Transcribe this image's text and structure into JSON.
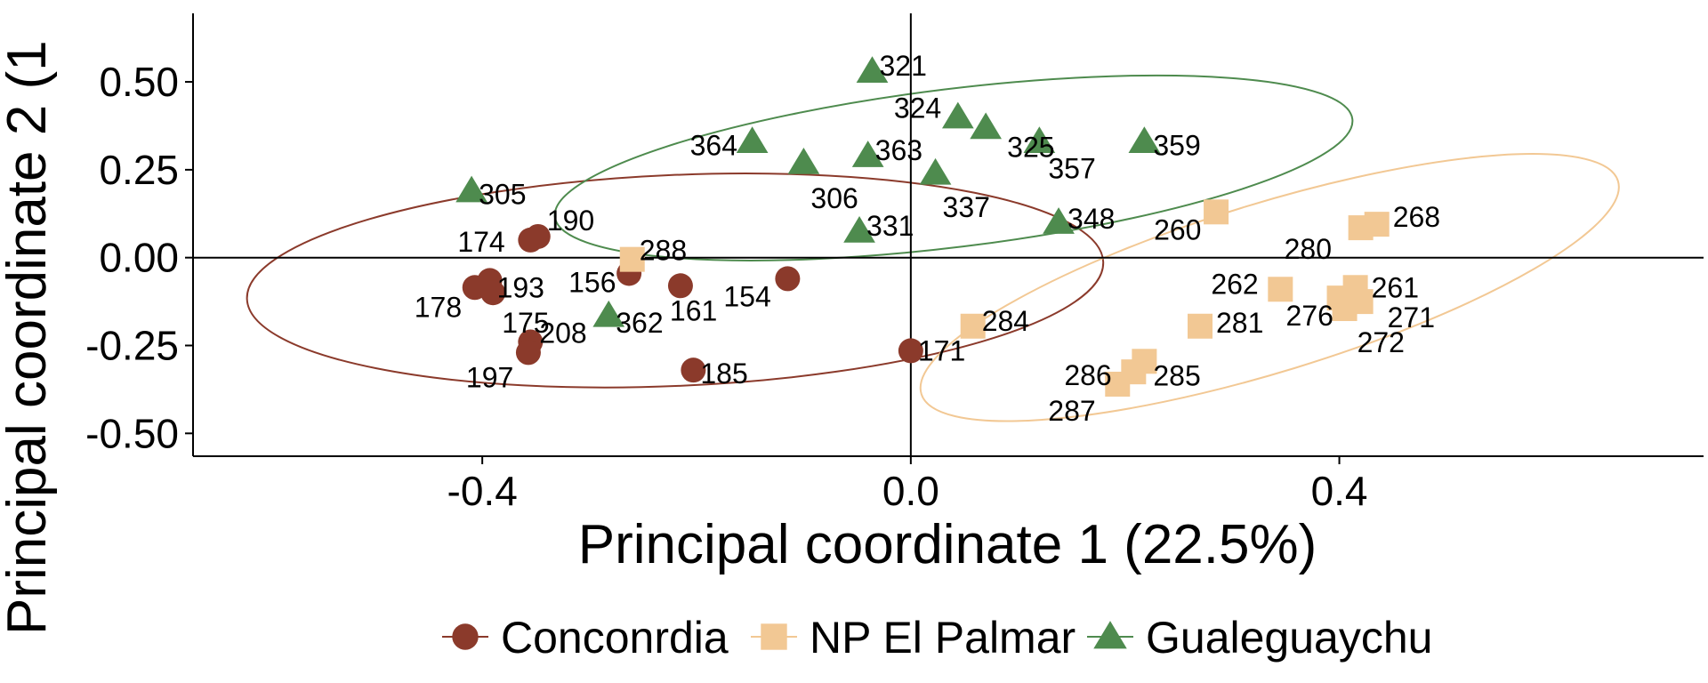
{
  "chart_data": {
    "type": "scatter",
    "xlabel": "Principal coordinate 1 (22.5%)",
    "ylabel": "Principal coordinate 2 (1",
    "xlim": [
      -0.67,
      0.74
    ],
    "ylim": [
      -0.565,
      0.695
    ],
    "xticks": [
      {
        "v": -0.4,
        "label": "-0.4"
      },
      {
        "v": 0.0,
        "label": "0.0"
      },
      {
        "v": 0.4,
        "label": "0.4"
      }
    ],
    "yticks": [
      {
        "v": 0.5,
        "label": "0.50"
      },
      {
        "v": 0.25,
        "label": "0.25"
      },
      {
        "v": 0.0,
        "label": "0.00"
      },
      {
        "v": -0.25,
        "label": "-0.25"
      },
      {
        "v": -0.5,
        "label": "-0.50"
      }
    ],
    "reference_lines": {
      "x": 0,
      "y": 0
    },
    "legend_position": "bottom",
    "series": [
      {
        "name": "Conconrdia",
        "shape": "circle",
        "color": "#8B3A2B",
        "ellipse": {
          "cx": -0.22,
          "cy": -0.065,
          "rx": 0.4,
          "ry": 0.3,
          "angle_deg": -2.5
        },
        "points": [
          {
            "label": "190",
            "x": -0.348,
            "y": 0.06
          },
          {
            "label": "174",
            "x": -0.355,
            "y": 0.05
          },
          {
            "label": "193",
            "x": -0.393,
            "y": -0.065
          },
          {
            "label": "178",
            "x": -0.407,
            "y": -0.085
          },
          {
            "label": "175",
            "x": -0.39,
            "y": -0.1
          },
          {
            "label": "156",
            "x": -0.263,
            "y": -0.045
          },
          {
            "label": "161",
            "x": -0.215,
            "y": -0.08
          },
          {
            "label": "154",
            "x": -0.115,
            "y": -0.06
          },
          {
            "label": "208",
            "x": -0.355,
            "y": -0.24
          },
          {
            "label": "197",
            "x": -0.357,
            "y": -0.27
          },
          {
            "label": "185",
            "x": -0.203,
            "y": -0.32
          },
          {
            "label": "171",
            "x": 0.0,
            "y": -0.265
          }
        ]
      },
      {
        "name": "NP El Palmar",
        "shape": "square",
        "color": "#F2C894",
        "ellipse": {
          "cx": 0.335,
          "cy": -0.085,
          "rx": 0.34,
          "ry": 0.24,
          "angle_deg": -17
        },
        "points": [
          {
            "label": "288",
            "x": -0.26,
            "y": -0.005
          },
          {
            "label": "260",
            "x": 0.285,
            "y": 0.13
          },
          {
            "label": "280",
            "x": 0.42,
            "y": 0.085
          },
          {
            "label": "268",
            "x": 0.435,
            "y": 0.095
          },
          {
            "label": "262",
            "x": 0.345,
            "y": -0.09
          },
          {
            "label": "261",
            "x": 0.415,
            "y": -0.085
          },
          {
            "label": "276",
            "x": 0.4,
            "y": -0.115
          },
          {
            "label": "271",
            "x": 0.42,
            "y": -0.125
          },
          {
            "label": "272",
            "x": 0.405,
            "y": -0.145
          },
          {
            "label": "281",
            "x": 0.27,
            "y": -0.195
          },
          {
            "label": "284",
            "x": 0.058,
            "y": -0.195
          },
          {
            "label": "285",
            "x": 0.218,
            "y": -0.295
          },
          {
            "label": "286",
            "x": 0.208,
            "y": -0.325
          },
          {
            "label": "287",
            "x": 0.193,
            "y": -0.36
          }
        ]
      },
      {
        "name": "Gualeguaychu",
        "shape": "triangle",
        "color": "#4E8B4E",
        "ellipse": {
          "cx": 0.04,
          "cy": 0.255,
          "rx": 0.375,
          "ry": 0.225,
          "angle_deg": -7
        },
        "points": [
          {
            "label": "321",
            "x": -0.036,
            "y": 0.53
          },
          {
            "label": "324",
            "x": 0.044,
            "y": 0.4
          },
          {
            "label": "325",
            "x": 0.07,
            "y": 0.37
          },
          {
            "label": "357",
            "x": 0.12,
            "y": 0.33
          },
          {
            "label": "359",
            "x": 0.218,
            "y": 0.33
          },
          {
            "label": "364",
            "x": -0.148,
            "y": 0.33
          },
          {
            "label": "363",
            "x": -0.04,
            "y": 0.29
          },
          {
            "label": "306",
            "x": -0.1,
            "y": 0.27
          },
          {
            "label": "337",
            "x": 0.023,
            "y": 0.24
          },
          {
            "label": "305",
            "x": -0.41,
            "y": 0.19
          },
          {
            "label": "348",
            "x": 0.138,
            "y": 0.1
          },
          {
            "label": "331",
            "x": -0.048,
            "y": 0.075
          },
          {
            "label": "362",
            "x": -0.282,
            "y": -0.165
          }
        ]
      }
    ]
  }
}
